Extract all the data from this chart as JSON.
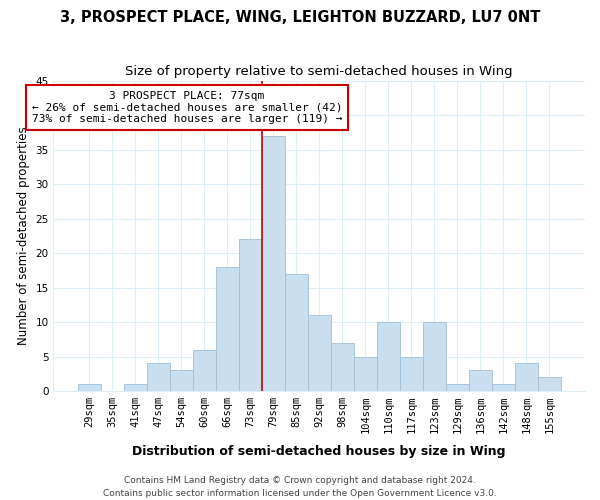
{
  "title": "3, PROSPECT PLACE, WING, LEIGHTON BUZZARD, LU7 0NT",
  "subtitle": "Size of property relative to semi-detached houses in Wing",
  "xlabel": "Distribution of semi-detached houses by size in Wing",
  "ylabel": "Number of semi-detached properties",
  "bar_labels": [
    "29sqm",
    "35sqm",
    "41sqm",
    "47sqm",
    "54sqm",
    "60sqm",
    "66sqm",
    "73sqm",
    "79sqm",
    "85sqm",
    "92sqm",
    "98sqm",
    "104sqm",
    "110sqm",
    "117sqm",
    "123sqm",
    "129sqm",
    "136sqm",
    "142sqm",
    "148sqm",
    "155sqm"
  ],
  "bar_values": [
    1,
    0,
    1,
    4,
    3,
    6,
    18,
    22,
    37,
    17,
    11,
    7,
    5,
    10,
    5,
    10,
    1,
    3,
    1,
    4,
    2
  ],
  "bar_color": "#c9dff0",
  "bar_edge_color": "#a0bfd8",
  "ylim": [
    0,
    45
  ],
  "yticks": [
    0,
    5,
    10,
    15,
    20,
    25,
    30,
    35,
    40,
    45
  ],
  "property_line_idx": 8,
  "property_line_color": "#cc0000",
  "annotation_title": "3 PROSPECT PLACE: 77sqm",
  "annotation_line1": "← 26% of semi-detached houses are smaller (42)",
  "annotation_line2": "73% of semi-detached houses are larger (119) →",
  "annotation_box_color": "#ffffff",
  "annotation_box_edge_color": "#cc0000",
  "footer_line1": "Contains HM Land Registry data © Crown copyright and database right 2024.",
  "footer_line2": "Contains public sector information licensed under the Open Government Licence v3.0.",
  "background_color": "#ffffff",
  "grid_color": "#ddeef8",
  "title_fontsize": 10.5,
  "subtitle_fontsize": 9.5,
  "xlabel_fontsize": 9,
  "ylabel_fontsize": 8.5,
  "tick_fontsize": 7.5,
  "annotation_fontsize": 8,
  "footer_fontsize": 6.5
}
